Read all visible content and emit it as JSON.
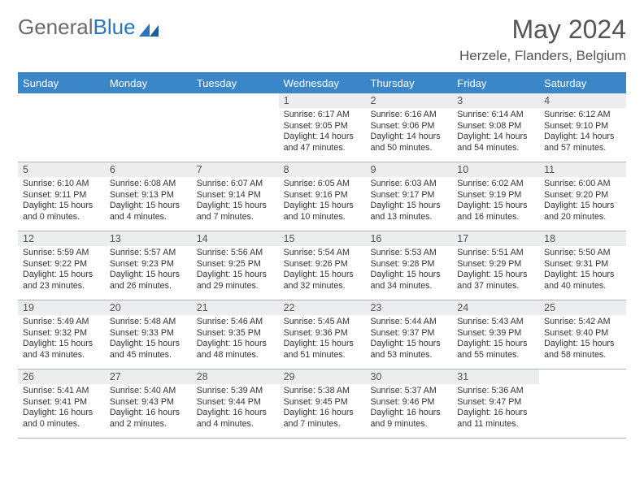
{
  "logo": {
    "text1": "General",
    "text2": "Blue"
  },
  "title": "May 2024",
  "location": "Herzele, Flanders, Belgium",
  "colors": {
    "header_bg": "#3a86c8",
    "header_text": "#ffffff",
    "border_top": "#2a76bd",
    "daynum_bg": "#ebedef",
    "daynum_text": "#555555",
    "body_text": "#333333",
    "week_border": "#aab4c2",
    "logo_gray": "#6b6b6b",
    "logo_blue": "#2a76bd"
  },
  "dow": [
    "Sunday",
    "Monday",
    "Tuesday",
    "Wednesday",
    "Thursday",
    "Friday",
    "Saturday"
  ],
  "weeks": [
    [
      null,
      null,
      null,
      {
        "n": "1",
        "sr": "6:17 AM",
        "ss": "9:05 PM",
        "dl": "14 hours and 47 minutes."
      },
      {
        "n": "2",
        "sr": "6:16 AM",
        "ss": "9:06 PM",
        "dl": "14 hours and 50 minutes."
      },
      {
        "n": "3",
        "sr": "6:14 AM",
        "ss": "9:08 PM",
        "dl": "14 hours and 54 minutes."
      },
      {
        "n": "4",
        "sr": "6:12 AM",
        "ss": "9:10 PM",
        "dl": "14 hours and 57 minutes."
      }
    ],
    [
      {
        "n": "5",
        "sr": "6:10 AM",
        "ss": "9:11 PM",
        "dl": "15 hours and 0 minutes."
      },
      {
        "n": "6",
        "sr": "6:08 AM",
        "ss": "9:13 PM",
        "dl": "15 hours and 4 minutes."
      },
      {
        "n": "7",
        "sr": "6:07 AM",
        "ss": "9:14 PM",
        "dl": "15 hours and 7 minutes."
      },
      {
        "n": "8",
        "sr": "6:05 AM",
        "ss": "9:16 PM",
        "dl": "15 hours and 10 minutes."
      },
      {
        "n": "9",
        "sr": "6:03 AM",
        "ss": "9:17 PM",
        "dl": "15 hours and 13 minutes."
      },
      {
        "n": "10",
        "sr": "6:02 AM",
        "ss": "9:19 PM",
        "dl": "15 hours and 16 minutes."
      },
      {
        "n": "11",
        "sr": "6:00 AM",
        "ss": "9:20 PM",
        "dl": "15 hours and 20 minutes."
      }
    ],
    [
      {
        "n": "12",
        "sr": "5:59 AM",
        "ss": "9:22 PM",
        "dl": "15 hours and 23 minutes."
      },
      {
        "n": "13",
        "sr": "5:57 AM",
        "ss": "9:23 PM",
        "dl": "15 hours and 26 minutes."
      },
      {
        "n": "14",
        "sr": "5:56 AM",
        "ss": "9:25 PM",
        "dl": "15 hours and 29 minutes."
      },
      {
        "n": "15",
        "sr": "5:54 AM",
        "ss": "9:26 PM",
        "dl": "15 hours and 32 minutes."
      },
      {
        "n": "16",
        "sr": "5:53 AM",
        "ss": "9:28 PM",
        "dl": "15 hours and 34 minutes."
      },
      {
        "n": "17",
        "sr": "5:51 AM",
        "ss": "9:29 PM",
        "dl": "15 hours and 37 minutes."
      },
      {
        "n": "18",
        "sr": "5:50 AM",
        "ss": "9:31 PM",
        "dl": "15 hours and 40 minutes."
      }
    ],
    [
      {
        "n": "19",
        "sr": "5:49 AM",
        "ss": "9:32 PM",
        "dl": "15 hours and 43 minutes."
      },
      {
        "n": "20",
        "sr": "5:48 AM",
        "ss": "9:33 PM",
        "dl": "15 hours and 45 minutes."
      },
      {
        "n": "21",
        "sr": "5:46 AM",
        "ss": "9:35 PM",
        "dl": "15 hours and 48 minutes."
      },
      {
        "n": "22",
        "sr": "5:45 AM",
        "ss": "9:36 PM",
        "dl": "15 hours and 51 minutes."
      },
      {
        "n": "23",
        "sr": "5:44 AM",
        "ss": "9:37 PM",
        "dl": "15 hours and 53 minutes."
      },
      {
        "n": "24",
        "sr": "5:43 AM",
        "ss": "9:39 PM",
        "dl": "15 hours and 55 minutes."
      },
      {
        "n": "25",
        "sr": "5:42 AM",
        "ss": "9:40 PM",
        "dl": "15 hours and 58 minutes."
      }
    ],
    [
      {
        "n": "26",
        "sr": "5:41 AM",
        "ss": "9:41 PM",
        "dl": "16 hours and 0 minutes."
      },
      {
        "n": "27",
        "sr": "5:40 AM",
        "ss": "9:43 PM",
        "dl": "16 hours and 2 minutes."
      },
      {
        "n": "28",
        "sr": "5:39 AM",
        "ss": "9:44 PM",
        "dl": "16 hours and 4 minutes."
      },
      {
        "n": "29",
        "sr": "5:38 AM",
        "ss": "9:45 PM",
        "dl": "16 hours and 7 minutes."
      },
      {
        "n": "30",
        "sr": "5:37 AM",
        "ss": "9:46 PM",
        "dl": "16 hours and 9 minutes."
      },
      {
        "n": "31",
        "sr": "5:36 AM",
        "ss": "9:47 PM",
        "dl": "16 hours and 11 minutes."
      },
      null
    ]
  ],
  "labels": {
    "sunrise": "Sunrise: ",
    "sunset": "Sunset: ",
    "daylight": "Daylight: "
  }
}
